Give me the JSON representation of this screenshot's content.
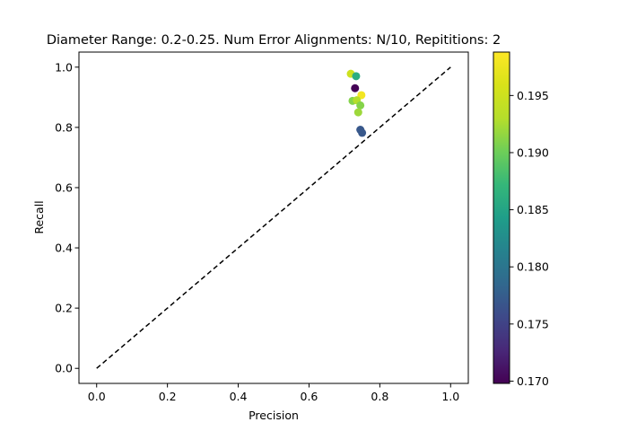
{
  "chart_data": {
    "type": "scatter",
    "title": "Diameter Range: 0.2-0.25. Num Error Alignments: N/10, Repititions: 2",
    "xlabel": "Precision",
    "ylabel": "Recall",
    "xlim": [
      -0.05,
      1.05
    ],
    "ylim": [
      -0.05,
      1.05
    ],
    "x_ticks": [
      0.0,
      0.2,
      0.4,
      0.6,
      0.8,
      1.0
    ],
    "x_tick_labels": [
      "0.0",
      "0.2",
      "0.4",
      "0.6",
      "0.8",
      "1.0"
    ],
    "y_ticks": [
      0.0,
      0.2,
      0.4,
      0.6,
      0.8,
      1.0
    ],
    "y_tick_labels": [
      "0.0",
      "0.2",
      "0.4",
      "0.6",
      "0.8",
      "1.0"
    ],
    "grid": false,
    "reference_line": {
      "x": [
        0,
        1
      ],
      "y": [
        0,
        1
      ],
      "style": "dashed",
      "color": "#000000"
    },
    "points": [
      {
        "x": 0.718,
        "y": 0.978,
        "c": 0.195
      },
      {
        "x": 0.733,
        "y": 0.97,
        "c": 0.186
      },
      {
        "x": 0.73,
        "y": 0.93,
        "c": 0.17
      },
      {
        "x": 0.748,
        "y": 0.907,
        "c": 0.198
      },
      {
        "x": 0.723,
        "y": 0.888,
        "c": 0.191
      },
      {
        "x": 0.735,
        "y": 0.89,
        "c": 0.193
      },
      {
        "x": 0.745,
        "y": 0.873,
        "c": 0.191
      },
      {
        "x": 0.739,
        "y": 0.85,
        "c": 0.192
      },
      {
        "x": 0.745,
        "y": 0.792,
        "c": 0.177
      },
      {
        "x": 0.75,
        "y": 0.782,
        "c": 0.177
      }
    ],
    "colorbar": {
      "colormap": "viridis",
      "range": [
        0.1698,
        0.1988
      ],
      "ticks": [
        0.17,
        0.175,
        0.18,
        0.185,
        0.19,
        0.195
      ],
      "tick_labels": [
        "0.170",
        "0.175",
        "0.180",
        "0.185",
        "0.190",
        "0.195"
      ]
    }
  }
}
